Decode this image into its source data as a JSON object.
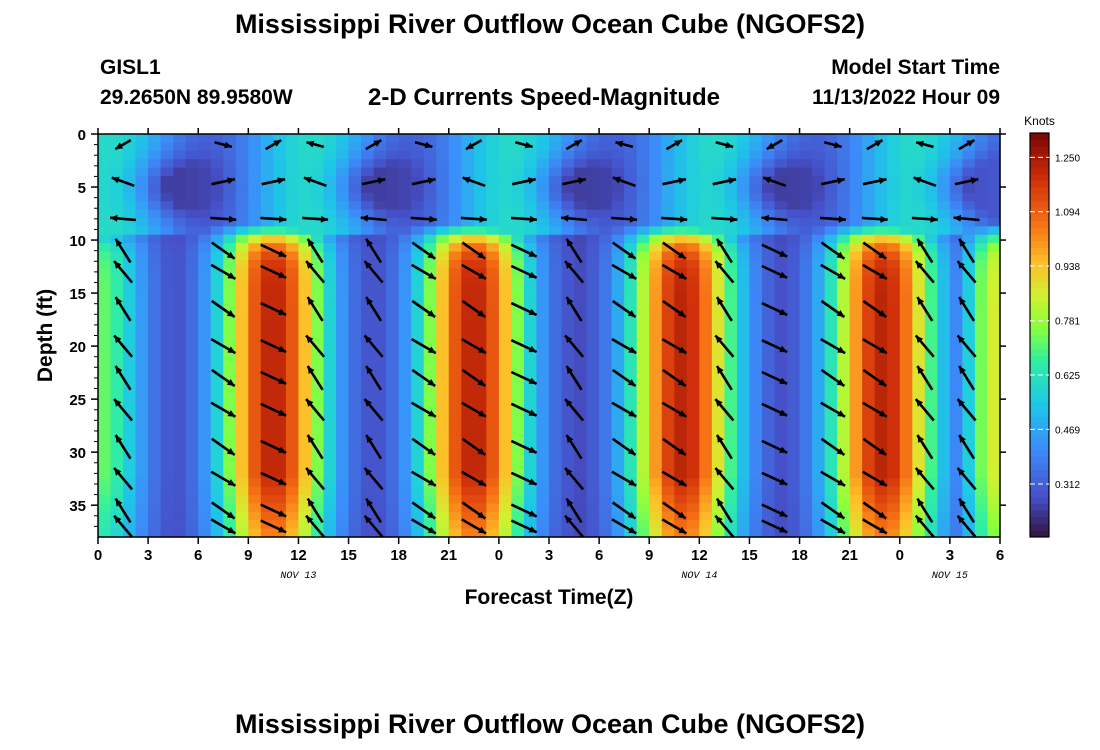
{
  "header": {
    "title": "Mississippi River Outflow Ocean Cube (NGOFS2)",
    "station": "GISL1",
    "coordinates": "29.2650N  89.9580W",
    "subtitle": "2-D Currents Speed-Magnitude",
    "model_start_label": "Model Start Time",
    "model_start_value": "11/13/2022 Hour 09"
  },
  "footer": {
    "title": "Mississippi River Outflow Ocean Cube (NGOFS2)"
  },
  "chart_data": {
    "type": "heatmap",
    "title": "2-D Currents Speed-Magnitude",
    "xlabel": "Forecast Time(Z)",
    "ylabel": "Depth (ft)",
    "xlim": [
      0,
      54
    ],
    "ylim": [
      38,
      0
    ],
    "x_ticks": [
      0,
      3,
      6,
      9,
      12,
      15,
      18,
      21,
      24,
      27,
      30,
      33,
      36,
      39,
      42,
      45,
      48,
      51,
      54
    ],
    "x_tick_labels": [
      "0",
      "3",
      "6",
      "9",
      "12",
      "15",
      "18",
      "21",
      "0",
      "3",
      "6",
      "9",
      "12",
      "15",
      "18",
      "21",
      "0",
      "3",
      "6"
    ],
    "y_ticks": [
      0,
      5,
      10,
      15,
      20,
      25,
      30,
      35
    ],
    "y_tick_labels": [
      "0",
      "5",
      "10",
      "15",
      "20",
      "25",
      "30",
      "35"
    ],
    "date_labels": [
      {
        "x": 12,
        "text": "NOV 13"
      },
      {
        "x": 36,
        "text": "NOV 14"
      },
      {
        "x": 51,
        "text": "NOV 15"
      }
    ],
    "colorbar": {
      "units": "Knots",
      "range": [
        0.16,
        1.32
      ],
      "ticks": [
        0.312,
        0.469,
        0.625,
        0.781,
        0.938,
        1.094,
        1.25
      ],
      "tick_labels": [
        "0.312",
        "0.469",
        "0.625",
        "0.781",
        "0.938",
        "1.094",
        "1.250"
      ]
    },
    "speed_peaks": [
      {
        "x": 0.0,
        "amp": 0.5,
        "sigma": 2.0
      },
      {
        "x": 10.5,
        "amp": 1.0,
        "sigma": 2.3
      },
      {
        "x": 22.5,
        "amp": 1.0,
        "sigma": 2.3
      },
      {
        "x": 35.0,
        "amp": 1.0,
        "sigma": 2.3
      },
      {
        "x": 47.0,
        "amp": 1.0,
        "sigma": 2.3
      },
      {
        "x": 54.0,
        "amp": 0.65,
        "sigma": 1.6
      }
    ],
    "vector_columns": [
      1.5,
      7.5,
      10.5,
      13.0,
      16.5,
      19.5,
      22.5,
      25.5,
      28.5,
      31.5,
      34.5,
      37.5,
      40.5,
      44.0,
      46.5,
      49.5,
      52.0
    ],
    "vector_rows": [
      1.0,
      4.5,
      8.0,
      11.0,
      13.0,
      16.5,
      20.0,
      23.0,
      26.0,
      29.5,
      32.5,
      35.5,
      37.0
    ],
    "grid": false,
    "legend": "colorbar-right"
  }
}
